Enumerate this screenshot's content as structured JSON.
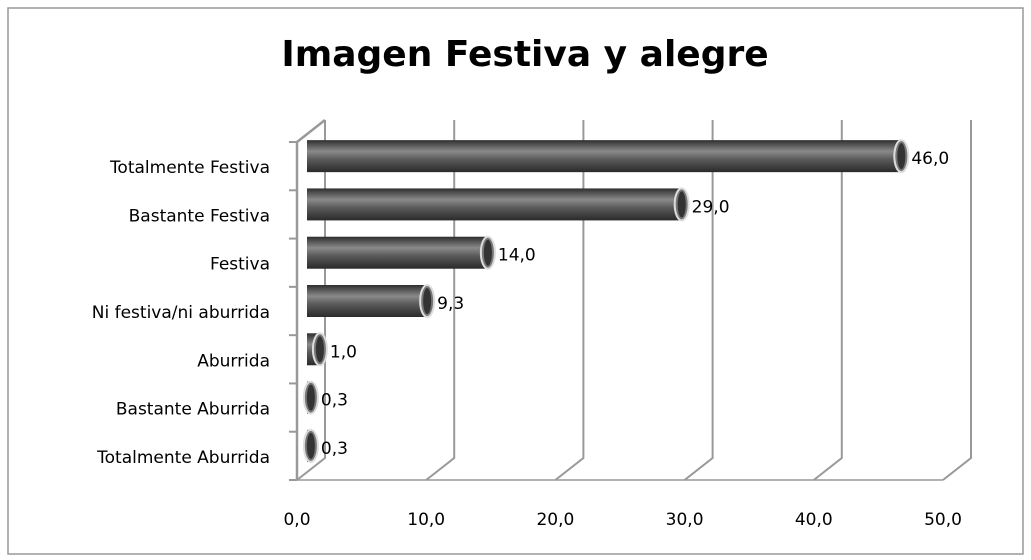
{
  "chart_data": {
    "type": "bar",
    "orientation": "horizontal",
    "title": "Imagen Festiva y alegre",
    "categories": [
      "Totalmente Festiva",
      "Bastante Festiva",
      "Festiva",
      "Ni festiva/ni aburrida",
      "Aburrida",
      "Bastante Aburrida",
      "Totalmente Aburrida"
    ],
    "values": [
      46,
      29,
      14,
      9.3,
      1,
      0.3,
      0.3
    ],
    "value_labels": [
      "46,0",
      "29,0",
      "14,0",
      "9,3",
      "1,0",
      "0,3",
      "0,3"
    ],
    "color": "#555555",
    "xlim": [
      0,
      50
    ],
    "xticks": [
      {
        "value": 0,
        "label": "0,0"
      },
      {
        "value": 10,
        "label": "10,0"
      },
      {
        "value": 20,
        "label": "20,0"
      },
      {
        "value": 30,
        "label": "30,0"
      },
      {
        "value": 40,
        "label": "40,0"
      },
      {
        "value": 50,
        "label": "50,0"
      }
    ],
    "grid": true
  }
}
